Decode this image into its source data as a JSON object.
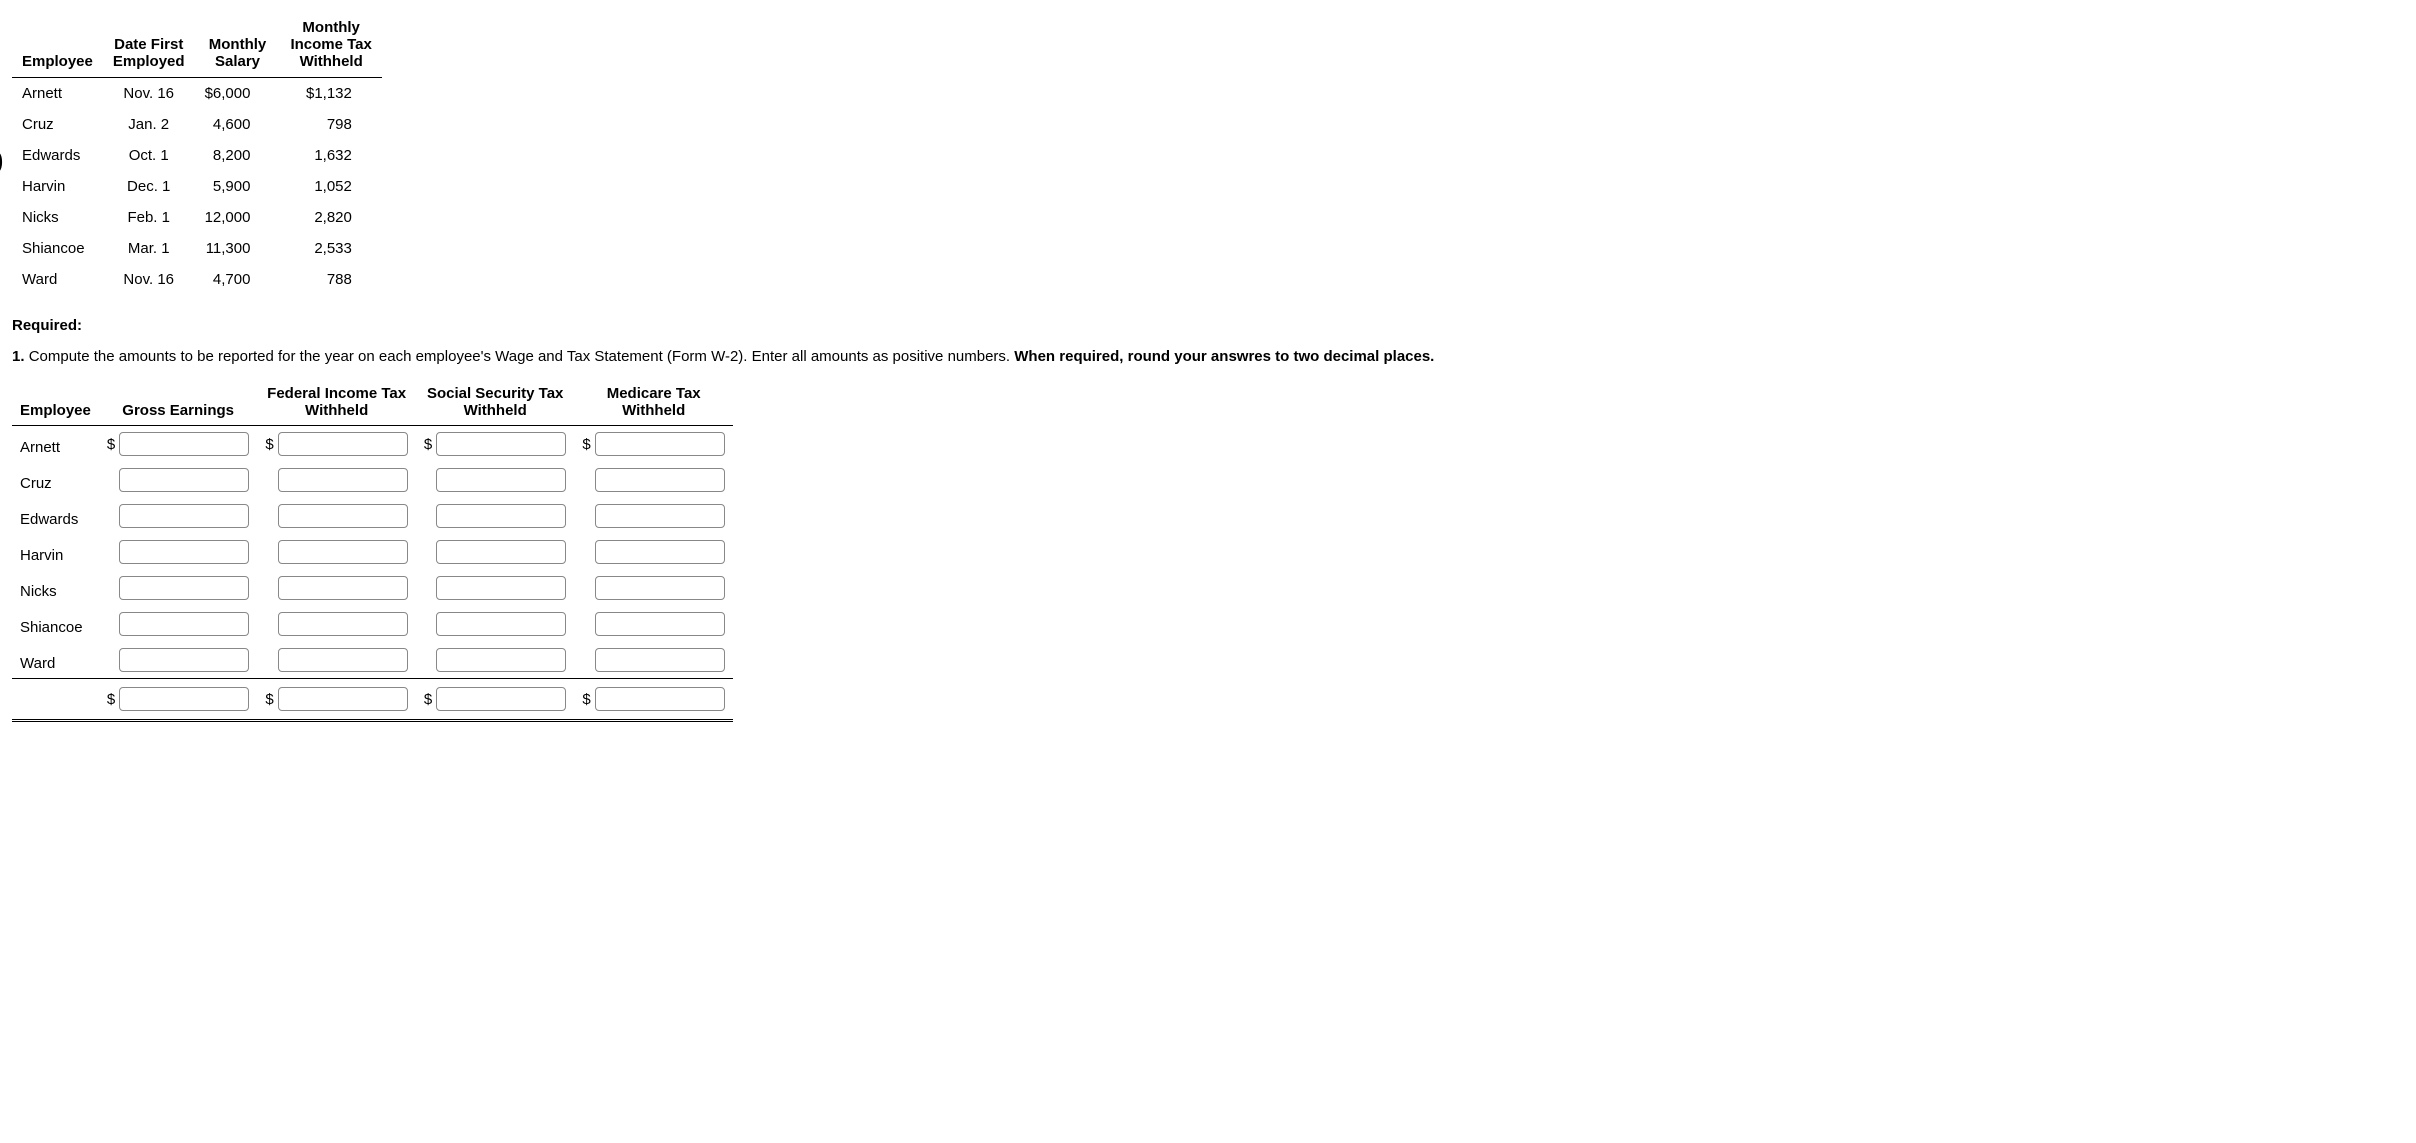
{
  "table1": {
    "headers": {
      "employee": "Employee",
      "date_first_line1": "Date First",
      "date_first_line2": "Employed",
      "salary_line1": "Monthly",
      "salary_line2": "Salary",
      "withheld_line1": "Monthly",
      "withheld_line2": "Income Tax",
      "withheld_line3": "Withheld"
    },
    "rows": [
      {
        "employee": "Arnett",
        "date": "Nov. 16",
        "salary": "$6,000",
        "withheld": "$1,132"
      },
      {
        "employee": "Cruz",
        "date": "Jan. 2",
        "salary": "4,600",
        "withheld": "798"
      },
      {
        "employee": "Edwards",
        "date": "Oct. 1",
        "salary": "8,200",
        "withheld": "1,632"
      },
      {
        "employee": "Harvin",
        "date": "Dec. 1",
        "salary": "5,900",
        "withheld": "1,052"
      },
      {
        "employee": "Nicks",
        "date": "Feb. 1",
        "salary": "12,000",
        "withheld": "2,820"
      },
      {
        "employee": "Shiancoe",
        "date": "Mar. 1",
        "salary": "11,300",
        "withheld": "2,533"
      },
      {
        "employee": "Ward",
        "date": "Nov. 16",
        "salary": "4,700",
        "withheld": "788"
      }
    ]
  },
  "required_label": "Required:",
  "instruction_num": "1.",
  "instruction_text": "Compute the amounts to be reported for the year on each employee's Wage and Tax Statement (Form W-2). Enter all amounts as positive numbers. ",
  "instruction_bold": "When required, round your answres to two decimal places.",
  "table2": {
    "headers": {
      "employee": "Employee",
      "gross": "Gross Earnings",
      "fed_line1": "Federal Income Tax",
      "fed_line2": "Withheld",
      "ss_line1": "Social Security Tax",
      "ss_line2": "Withheld",
      "med_line1": "Medicare Tax",
      "med_line2": "Withheld"
    },
    "rows": [
      {
        "employee": "Arnett",
        "dollar": true
      },
      {
        "employee": "Cruz",
        "dollar": false
      },
      {
        "employee": "Edwards",
        "dollar": false
      },
      {
        "employee": "Harvin",
        "dollar": false
      },
      {
        "employee": "Nicks",
        "dollar": false
      },
      {
        "employee": "Shiancoe",
        "dollar": false
      },
      {
        "employee": "Ward",
        "dollar": false
      }
    ]
  },
  "dollar_sign": "$"
}
